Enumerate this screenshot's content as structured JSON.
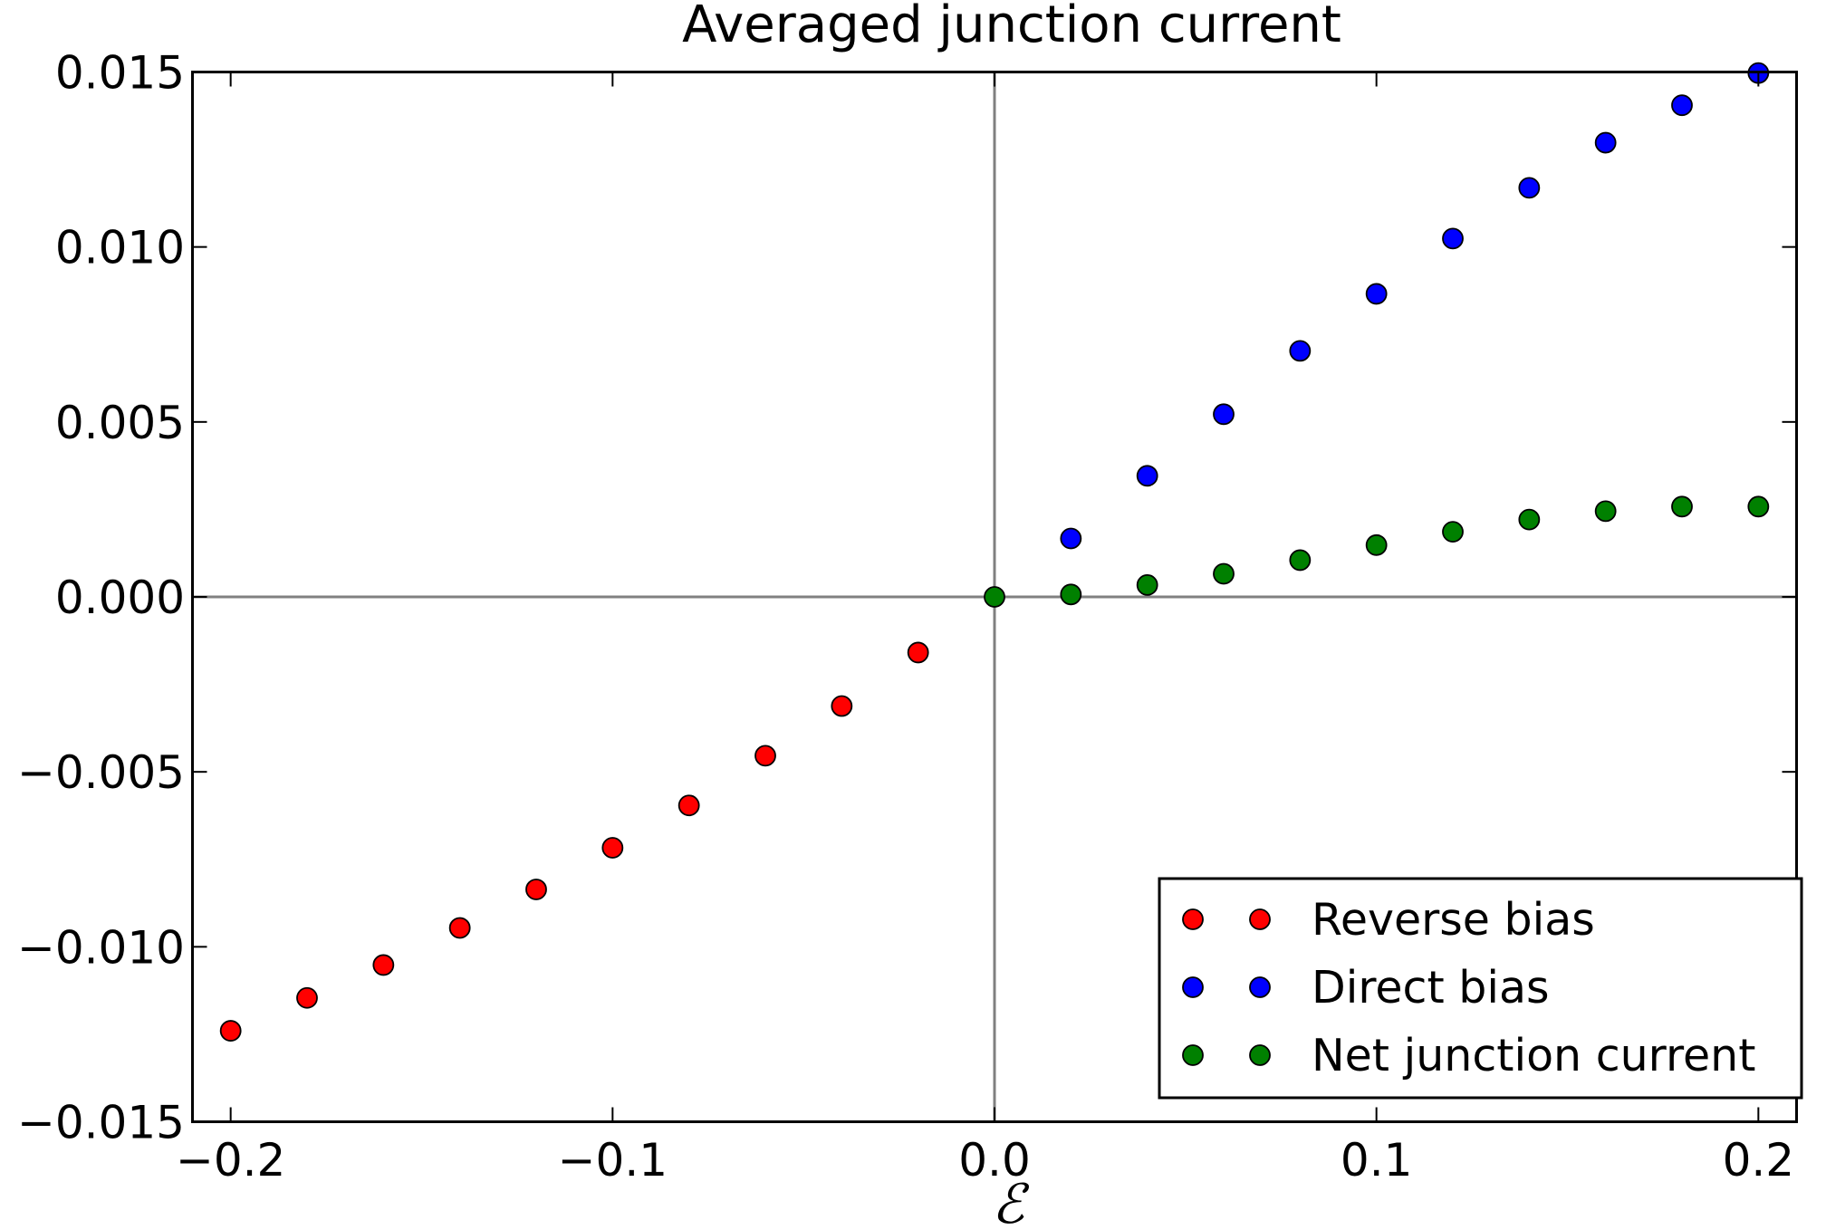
{
  "chart_data": {
    "type": "scatter",
    "title": "Averaged junction current",
    "xlabel": "ℰ",
    "ylabel": "",
    "xlim": [
      -0.21,
      0.21
    ],
    "ylim": [
      -0.015,
      0.015
    ],
    "xticks": [
      -0.2,
      -0.1,
      0.0,
      0.1,
      0.2
    ],
    "xtick_labels": [
      "−0.2",
      "−0.1",
      "0.0",
      "0.1",
      "0.2"
    ],
    "yticks": [
      -0.015,
      -0.01,
      -0.005,
      0.0,
      0.005,
      0.01,
      0.015
    ],
    "ytick_labels": [
      "−0.015",
      "−0.010",
      "−0.005",
      "0.000",
      "0.005",
      "0.010",
      "0.015"
    ],
    "reference_lines": {
      "x": 0,
      "y": 0,
      "color": "#808080"
    },
    "grid": false,
    "legend_position": "lower-right",
    "series": [
      {
        "name": "Reverse bias",
        "color": "#ff0000",
        "x": [
          -0.2,
          -0.18,
          -0.16,
          -0.14,
          -0.12,
          -0.1,
          -0.08,
          -0.06,
          -0.04,
          -0.02
        ],
        "y": [
          -0.0124,
          -0.01146,
          -0.01052,
          -0.00946,
          -0.00836,
          -0.00717,
          -0.00596,
          -0.00454,
          -0.00312,
          -0.00159
        ]
      },
      {
        "name": "Direct bias",
        "color": "#0000ff",
        "x": [
          0.02,
          0.04,
          0.06,
          0.08,
          0.1,
          0.12,
          0.14,
          0.16,
          0.18,
          0.2
        ],
        "y": [
          0.00167,
          0.00346,
          0.00522,
          0.00703,
          0.00866,
          0.01024,
          0.01169,
          0.01298,
          0.01405,
          0.01497
        ]
      },
      {
        "name": "Net junction current",
        "color": "#008000",
        "x": [
          0.0,
          0.02,
          0.04,
          0.06,
          0.08,
          0.1,
          0.12,
          0.14,
          0.16,
          0.18,
          0.2
        ],
        "y": [
          0.0,
          7e-05,
          0.00034,
          0.00066,
          0.00105,
          0.00148,
          0.00186,
          0.00221,
          0.00245,
          0.00258,
          0.00258
        ]
      }
    ]
  }
}
